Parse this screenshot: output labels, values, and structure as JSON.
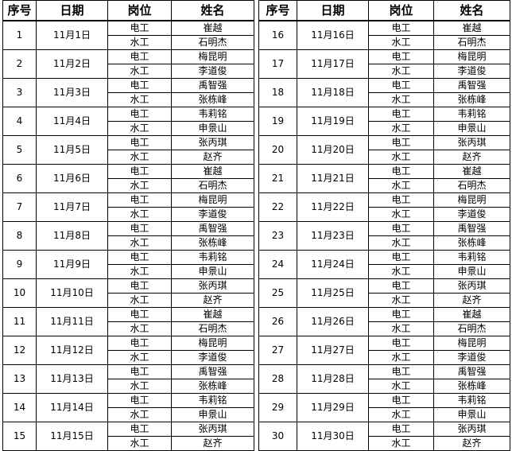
{
  "headers": [
    "序号",
    "日期",
    "岗位",
    "姓名"
  ],
  "rows": [
    {
      "no": "1",
      "date": "11月1日",
      "staff": [
        {
          "role": "电工",
          "name": "崔越"
        },
        {
          "role": "水工",
          "name": "石明杰"
        }
      ]
    },
    {
      "no": "2",
      "date": "11月2日",
      "staff": [
        {
          "role": "电工",
          "name": "梅昆明"
        },
        {
          "role": "水工",
          "name": "李道俊"
        }
      ]
    },
    {
      "no": "3",
      "date": "11月3日",
      "staff": [
        {
          "role": "电工",
          "name": "禹智强"
        },
        {
          "role": "水工",
          "name": "张栋峰"
        }
      ]
    },
    {
      "no": "4",
      "date": "11月4日",
      "staff": [
        {
          "role": "电工",
          "name": "韦莉铭"
        },
        {
          "role": "水工",
          "name": "申景山"
        }
      ]
    },
    {
      "no": "5",
      "date": "11月5日",
      "staff": [
        {
          "role": "电工",
          "name": "张丙琪"
        },
        {
          "role": "水工",
          "name": "赵齐"
        }
      ]
    },
    {
      "no": "6",
      "date": "11月6日",
      "staff": [
        {
          "role": "电工",
          "name": "崔越"
        },
        {
          "role": "水工",
          "name": "石明杰"
        }
      ]
    },
    {
      "no": "7",
      "date": "11月7日",
      "staff": [
        {
          "role": "电工",
          "name": "梅昆明"
        },
        {
          "role": "水工",
          "name": "李道俊"
        }
      ]
    },
    {
      "no": "8",
      "date": "11月8日",
      "staff": [
        {
          "role": "电工",
          "name": "禹智强"
        },
        {
          "role": "水工",
          "name": "张栋峰"
        }
      ]
    },
    {
      "no": "9",
      "date": "11月9日",
      "staff": [
        {
          "role": "电工",
          "name": "韦莉铭"
        },
        {
          "role": "水工",
          "name": "申景山"
        }
      ]
    },
    {
      "no": "10",
      "date": "11月10日",
      "staff": [
        {
          "role": "电工",
          "name": "张丙琪"
        },
        {
          "role": "水工",
          "name": "赵齐"
        }
      ]
    },
    {
      "no": "11",
      "date": "11月11日",
      "staff": [
        {
          "role": "电工",
          "name": "崔越"
        },
        {
          "role": "水工",
          "name": "石明杰"
        }
      ]
    },
    {
      "no": "12",
      "date": "11月12日",
      "staff": [
        {
          "role": "电工",
          "name": "梅昆明"
        },
        {
          "role": "水工",
          "name": "李道俊"
        }
      ]
    },
    {
      "no": "13",
      "date": "11月13日",
      "staff": [
        {
          "role": "电工",
          "name": "禹智强"
        },
        {
          "role": "水工",
          "name": "张栋峰"
        }
      ]
    },
    {
      "no": "14",
      "date": "11月14日",
      "staff": [
        {
          "role": "电工",
          "name": "韦莉铭"
        },
        {
          "role": "水工",
          "name": "申景山"
        }
      ]
    },
    {
      "no": "15",
      "date": "11月15日",
      "staff": [
        {
          "role": "电工",
          "name": "张丙琪"
        },
        {
          "role": "水工",
          "name": "赵齐"
        }
      ]
    },
    {
      "no": "16",
      "date": "11月16日",
      "staff": [
        {
          "role": "电工",
          "name": "崔越"
        },
        {
          "role": "水工",
          "name": "石明杰"
        }
      ]
    },
    {
      "no": "17",
      "date": "11月17日",
      "staff": [
        {
          "role": "电工",
          "name": "梅昆明"
        },
        {
          "role": "水工",
          "name": "李道俊"
        }
      ]
    },
    {
      "no": "18",
      "date": "11月18日",
      "staff": [
        {
          "role": "电工",
          "name": "禹智强"
        },
        {
          "role": "水工",
          "name": "张栋峰"
        }
      ]
    },
    {
      "no": "19",
      "date": "11月19日",
      "staff": [
        {
          "role": "电工",
          "name": "韦莉铭"
        },
        {
          "role": "水工",
          "name": "申景山"
        }
      ]
    },
    {
      "no": "20",
      "date": "11月20日",
      "staff": [
        {
          "role": "电工",
          "name": "张丙琪"
        },
        {
          "role": "水工",
          "name": "赵齐"
        }
      ]
    },
    {
      "no": "21",
      "date": "11月21日",
      "staff": [
        {
          "role": "电工",
          "name": "崔越"
        },
        {
          "role": "水工",
          "name": "石明杰"
        }
      ]
    },
    {
      "no": "22",
      "date": "11月22日",
      "staff": [
        {
          "role": "电工",
          "name": "梅昆明"
        },
        {
          "role": "水工",
          "name": "李道俊"
        }
      ]
    },
    {
      "no": "23",
      "date": "11月23日",
      "staff": [
        {
          "role": "电工",
          "name": "禹智强"
        },
        {
          "role": "水工",
          "name": "张栋峰"
        }
      ]
    },
    {
      "no": "24",
      "date": "11月24日",
      "staff": [
        {
          "role": "电工",
          "name": "韦莉铭"
        },
        {
          "role": "水工",
          "name": "申景山"
        }
      ]
    },
    {
      "no": "25",
      "date": "11月25日",
      "staff": [
        {
          "role": "电工",
          "name": "张丙琪"
        },
        {
          "role": "水工",
          "name": "赵齐"
        }
      ]
    },
    {
      "no": "26",
      "date": "11月26日",
      "staff": [
        {
          "role": "电工",
          "name": "崔越"
        },
        {
          "role": "水工",
          "name": "石明杰"
        }
      ]
    },
    {
      "no": "27",
      "date": "11月27日",
      "staff": [
        {
          "role": "电工",
          "name": "梅昆明"
        },
        {
          "role": "水工",
          "name": "李道俊"
        }
      ]
    },
    {
      "no": "28",
      "date": "11月28日",
      "staff": [
        {
          "role": "电工",
          "name": "禹智强"
        },
        {
          "role": "水工",
          "name": "张栋峰"
        }
      ]
    },
    {
      "no": "29",
      "date": "11月29日",
      "staff": [
        {
          "role": "电工",
          "name": "韦莉铭"
        },
        {
          "role": "水工",
          "name": "申景山"
        }
      ]
    },
    {
      "no": "30",
      "date": "11月30日",
      "staff": [
        {
          "role": "电工",
          "name": "张丙琪"
        },
        {
          "role": "水工",
          "name": "赵齐"
        }
      ]
    }
  ]
}
